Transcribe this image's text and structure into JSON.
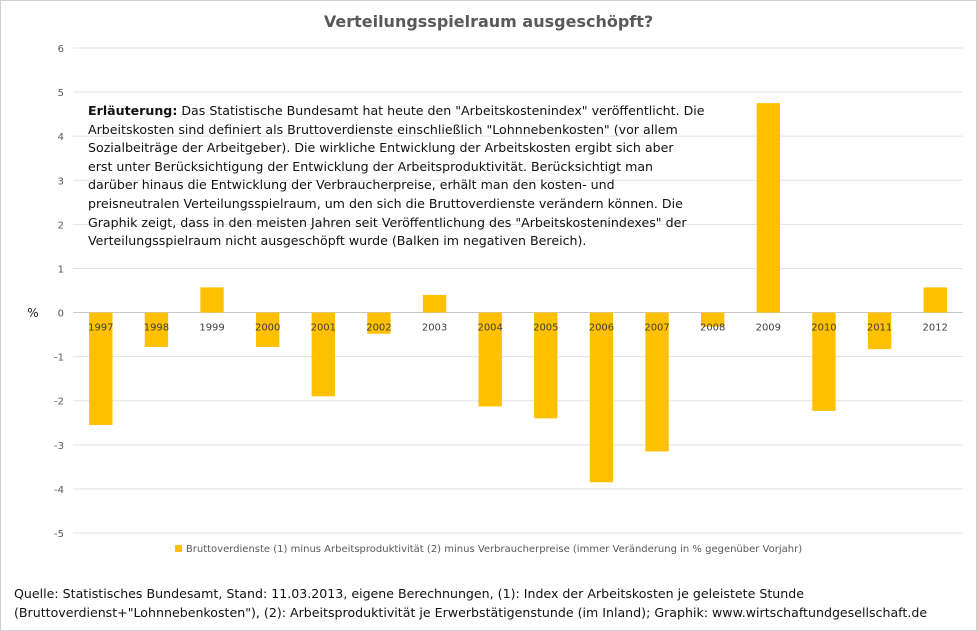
{
  "chart_data": {
    "type": "bar",
    "title": "Verteilungsspielraum ausgeschöpft?",
    "ylabel": "%",
    "xlabel": "",
    "ylim": [
      -5,
      6
    ],
    "yticks": [
      6,
      5,
      4,
      3,
      2,
      1,
      0,
      -1,
      -2,
      -3,
      -4,
      -5
    ],
    "grid": true,
    "bar_color": "#ffc000",
    "legend_position": "bottom",
    "categories": [
      "1997",
      "1998",
      "1999",
      "2000",
      "2001",
      "2002",
      "2003",
      "2004",
      "2005",
      "2006",
      "2007",
      "2008",
      "2009",
      "2010",
      "2011",
      "2012"
    ],
    "series": [
      {
        "name": "Bruttoverdienste (1) minus Arbeitsproduktivität (2) minus Verbraucherpreise (immer Veränderung in % gegenüber Vorjahr)",
        "values": [
          -2.55,
          -0.78,
          0.57,
          -0.78,
          -1.9,
          -0.48,
          0.4,
          -2.13,
          -2.4,
          -3.85,
          -3.15,
          -0.32,
          4.75,
          -2.23,
          -0.83,
          0.57
        ]
      }
    ]
  },
  "explanation": {
    "heading": "Erläuterung:",
    "lines": [
      " Das Statistische Bundesamt hat heute den \"Arbeitskostenindex\" veröffentlicht. Die",
      "Arbeitskosten sind definiert als Bruttoverdienste einschließlich \"Lohnnebenkosten\" (vor allem",
      "Sozialbeiträge der Arbeitgeber). Die wirkliche Entwicklung der Arbeitskosten ergibt sich aber",
      "erst unter Berücksichtigung der Entwicklung der Arbeitsproduktivität. Berücksichtigt man",
      "darüber hinaus die Entwicklung der Verbraucherpreise, erhält man den kosten- und",
      "preisneutralen Verteilungsspielraum, um den sich die Bruttoverdienste verändern können. Die",
      "Graphik zeigt, dass in den meisten Jahren seit Veröffentlichung des \"Arbeitskostenindexes\" der",
      "Verteilungsspielraum nicht ausgeschöpft wurde (Balken im negativen Bereich)."
    ]
  },
  "source": {
    "lines": [
      "Quelle: Statistisches Bundesamt, Stand: 11.03.2013,  eigene Berechnungen, (1): Index der Arbeitskosten je geleistete Stunde",
      "(Bruttoverdienst+\"Lohnnebenkosten\"), (2): Arbeitsproduktivität je Erwerbstätigenstunde (im Inland); Graphik: www.wirtschaftundgesellschaft.de"
    ]
  }
}
